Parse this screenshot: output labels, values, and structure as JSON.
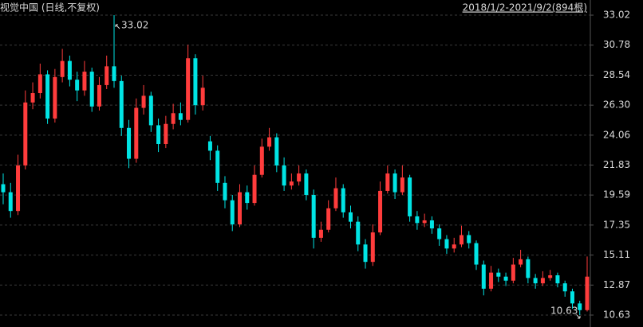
{
  "chart_data": {
    "type": "candlestick",
    "title": "视觉中国 (日线,不复权)",
    "range_label": "2018/1/2-2021/9/2(894根)",
    "annotations": [
      "33.02",
      "10.63"
    ],
    "up_color": "#ff3c3c",
    "down_color": "#00e4e4",
    "grid": true,
    "ylim": [
      9.74,
      34.15
    ],
    "yticks": [
      33.02,
      30.78,
      28.54,
      {
        "value": 26.3,
        "label": "26.30"
      },
      24.06,
      21.83,
      19.59,
      17.35,
      15.11,
      12.87,
      10.63
    ],
    "open": [
      20.4,
      19.8,
      18.4,
      21.8,
      26.5,
      27.2,
      28.6,
      25.3,
      28.4,
      29.6,
      28.2,
      27.4,
      28.8,
      26.2,
      27.8,
      29.2,
      28.1,
      24.6,
      22.3,
      26.1,
      27.0,
      24.8,
      23.4,
      24.9,
      25.7,
      25.2,
      29.8,
      26.3,
      23.6,
      22.9,
      20.5,
      19.2,
      17.4,
      19.8,
      19.0,
      21.1,
      23.2,
      23.9,
      21.8,
      20.3,
      20.6,
      21.2,
      19.6,
      16.4,
      17.0,
      18.6,
      20.1,
      18.3,
      17.6,
      15.9,
      14.6,
      16.8,
      19.9,
      21.2,
      19.8,
      20.9,
      18.0,
      17.5,
      17.7,
      17.1,
      16.3,
      15.6,
      15.9,
      16.6,
      16.0,
      14.4,
      12.6,
      13.8,
      13.5,
      13.2,
      14.4,
      14.8,
      13.4,
      13.0,
      13.4,
      13.6,
      13.0,
      12.4,
      11.5,
      11.0
    ],
    "high": [
      21.2,
      20.5,
      22.6,
      27.4,
      28.0,
      29.4,
      28.9,
      29.0,
      30.5,
      30.0,
      28.8,
      29.6,
      29.1,
      28.4,
      30.0,
      33.02,
      28.5,
      25.2,
      26.8,
      27.8,
      27.3,
      25.3,
      25.5,
      26.4,
      26.5,
      30.8,
      30.1,
      28.5,
      24.0,
      23.3,
      21.0,
      19.6,
      20.4,
      20.3,
      21.8,
      23.8,
      24.6,
      24.2,
      22.4,
      21.2,
      21.8,
      21.5,
      20.0,
      17.6,
      19.2,
      20.9,
      20.4,
      18.8,
      18.0,
      16.3,
      17.4,
      20.6,
      21.8,
      21.5,
      21.8,
      21.1,
      18.4,
      18.2,
      18.0,
      17.4,
      16.6,
      16.4,
      17.3,
      16.9,
      16.2,
      14.7,
      14.3,
      14.1,
      13.8,
      14.9,
      15.5,
      15.0,
      13.7,
      13.9,
      14.0,
      13.8,
      13.2,
      12.6,
      11.7,
      15.0
    ],
    "low": [
      18.9,
      17.9,
      18.1,
      21.5,
      26.0,
      26.8,
      24.9,
      25.0,
      28.0,
      27.7,
      26.6,
      27.0,
      25.8,
      25.9,
      27.5,
      27.6,
      24.0,
      21.6,
      22.0,
      25.6,
      24.3,
      22.8,
      23.1,
      24.5,
      24.8,
      25.0,
      25.6,
      25.9,
      22.2,
      19.9,
      18.6,
      16.9,
      17.2,
      18.5,
      18.8,
      20.9,
      22.9,
      21.3,
      19.9,
      20.0,
      20.3,
      19.2,
      15.6,
      16.1,
      16.8,
      18.4,
      17.9,
      17.1,
      15.4,
      14.1,
      14.3,
      16.6,
      19.7,
      19.3,
      19.6,
      17.6,
      17.0,
      17.2,
      16.7,
      15.8,
      15.2,
      15.3,
      15.7,
      15.6,
      14.0,
      12.1,
      12.4,
      13.1,
      12.8,
      13.0,
      14.2,
      13.0,
      12.6,
      12.8,
      13.2,
      12.7,
      12.0,
      11.1,
      10.63,
      10.9
    ],
    "close": [
      19.8,
      18.4,
      21.8,
      26.5,
      27.2,
      28.6,
      25.3,
      28.4,
      29.6,
      28.2,
      27.4,
      28.8,
      26.2,
      27.8,
      29.2,
      28.1,
      24.6,
      22.3,
      26.1,
      27.0,
      24.8,
      23.4,
      24.9,
      25.7,
      25.2,
      29.8,
      26.3,
      27.6,
      22.9,
      20.5,
      19.2,
      17.4,
      19.8,
      19.0,
      21.1,
      23.2,
      23.9,
      21.8,
      20.3,
      20.6,
      21.2,
      19.6,
      16.4,
      17.0,
      18.6,
      20.1,
      18.3,
      17.6,
      15.9,
      14.6,
      16.8,
      19.9,
      21.2,
      19.8,
      20.9,
      18.0,
      17.5,
      17.7,
      17.1,
      16.3,
      15.6,
      15.9,
      16.6,
      16.0,
      14.4,
      12.6,
      13.8,
      13.5,
      13.2,
      14.4,
      14.8,
      13.4,
      13.0,
      13.4,
      13.6,
      13.0,
      12.4,
      11.5,
      11.0,
      13.5
    ]
  }
}
